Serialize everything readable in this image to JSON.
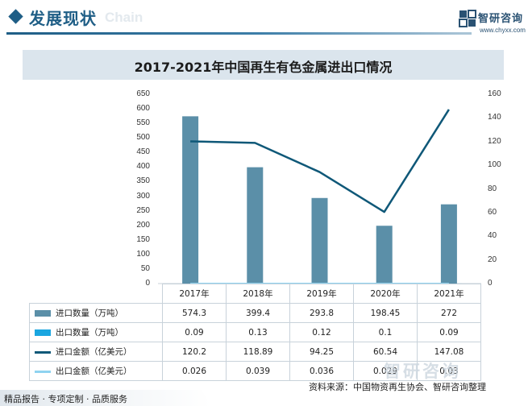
{
  "header": {
    "title": "发展现状",
    "ghost_text": "Chain",
    "logo_name": "智研咨询",
    "logo_url": "www.chyxx.com"
  },
  "chart_title": "2017-2021年中国再生有色金属进出口情况",
  "colors": {
    "brand": "#1f5e86",
    "import_volume": "#5b8fa8",
    "export_volume": "#1aa6e0",
    "import_value": "#0f5878",
    "export_value": "#8fd3f0"
  },
  "chart_data": {
    "type": "bar",
    "title": "2017-2021年中国再生有色金属进出口情况",
    "categories": [
      "2017年",
      "2018年",
      "2019年",
      "2020年",
      "2021年"
    ],
    "y_left_ticks": [
      "0",
      "50",
      "100",
      "150",
      "200",
      "250",
      "300",
      "350",
      "400",
      "450",
      "500",
      "550",
      "600",
      "650"
    ],
    "y_right_ticks": [
      "0",
      "20",
      "40",
      "60",
      "80",
      "100",
      "120",
      "140",
      "160"
    ],
    "ylim_left": [
      0,
      650
    ],
    "ylim_right": [
      0,
      160
    ],
    "series": [
      {
        "name": "进口数量（万吨）",
        "type": "bar",
        "axis": "left",
        "values": [
          574.3,
          399.4,
          293.8,
          198.45,
          272
        ],
        "labels": [
          "574.3",
          "399.4",
          "293.8",
          "198.45",
          "272"
        ]
      },
      {
        "name": "出口数量（万吨）",
        "type": "bar",
        "axis": "left",
        "values": [
          0.09,
          0.13,
          0.12,
          0.1,
          0.09
        ],
        "labels": [
          "0.09",
          "0.13",
          "0.12",
          "0.1",
          "0.09"
        ]
      },
      {
        "name": "进口金额（亿美元）",
        "type": "line",
        "axis": "right",
        "values": [
          120.2,
          118.89,
          94.25,
          60.54,
          147.08
        ],
        "labels": [
          "120.2",
          "118.89",
          "94.25",
          "60.54",
          "147.08"
        ]
      },
      {
        "name": "出口金额（亿美元）",
        "type": "line",
        "axis": "right",
        "values": [
          0.026,
          0.039,
          0.036,
          0.029,
          0.03
        ],
        "labels": [
          "0.026",
          "0.039",
          "0.036",
          "0.029",
          "0.03"
        ]
      }
    ],
    "grid": false,
    "legend": "table"
  },
  "footer": {
    "source": "资料来源：中国物资再生协会、智研咨询整理",
    "tagline": "精品报告 · 专项定制 · 品质服务",
    "brand": "智研咨询"
  }
}
